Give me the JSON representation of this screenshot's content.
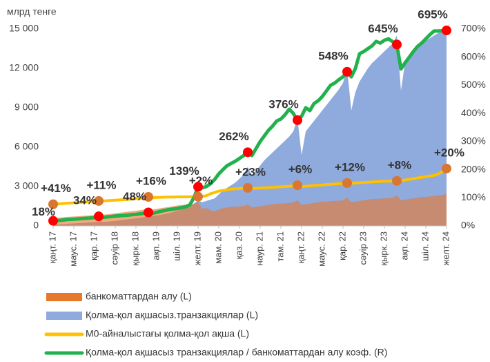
{
  "chart_data": {
    "type": "area",
    "y_label": "млрд тенге",
    "categories": [
      "қаңт. 17",
      null,
      null,
      null,
      null,
      "мауc. 17",
      null,
      null,
      null,
      null,
      "қар. 17",
      null,
      null,
      null,
      null,
      "сәуір 18",
      null,
      null,
      null,
      null,
      "қырк. 18",
      null,
      null,
      null,
      null,
      "ақп. 19",
      null,
      null,
      null,
      null,
      "шіл. 19",
      null,
      null,
      null,
      null,
      "желт. 19",
      null,
      null,
      null,
      null,
      "мам. 20",
      null,
      null,
      null,
      null,
      "қаз. 20",
      null,
      null,
      null,
      null,
      "наур. 21",
      null,
      null,
      null,
      null,
      "там. 21",
      null,
      null,
      null,
      null,
      "қаңт. 22",
      null,
      null,
      null,
      null,
      "мауc. 22",
      null,
      null,
      null,
      null,
      "қар. 22",
      null,
      null,
      null,
      null,
      "сәуір 23",
      null,
      null,
      null,
      null,
      "қырк. 23",
      null,
      null,
      null,
      null,
      "ақп. 24",
      null,
      null,
      null,
      null,
      "шіл. 24",
      null,
      null,
      null,
      null,
      "желт. 24"
    ],
    "series": [
      {
        "name": "Қолма-қол ақшасыз.транзакциялар (L)",
        "kind": "area",
        "color": "#8faadc",
        "values": [
          100,
          110,
          130,
          150,
          170,
          190,
          210,
          230,
          250,
          270,
          290,
          350,
          300,
          320,
          350,
          380,
          420,
          460,
          500,
          540,
          580,
          620,
          680,
          800,
          750,
          800,
          850,
          900,
          980,
          1050,
          1150,
          1250,
          1350,
          1500,
          1700,
          1950,
          1800,
          1900,
          2000,
          2100,
          2400,
          2700,
          2900,
          3100,
          3300,
          3600,
          3900,
          4500,
          3800,
          4200,
          4600,
          5000,
          5300,
          5600,
          5900,
          6200,
          6500,
          6800,
          7200,
          8200,
          5400,
          7200,
          7600,
          8000,
          8400,
          8800,
          9200,
          9600,
          10000,
          10400,
          10900,
          12000,
          8800,
          10200,
          11000,
          11500,
          12000,
          12400,
          12700,
          13000,
          13300,
          13600,
          13900,
          14500,
          10300,
          12500,
          13000,
          13300,
          13600,
          13900,
          14100,
          14300,
          14500,
          14700,
          14800,
          14950
        ]
      },
      {
        "name": "банкоматтардан алу (L)",
        "kind": "area",
        "color": "#e8772e",
        "values": [
          600,
          620,
          650,
          680,
          700,
          720,
          740,
          760,
          780,
          800,
          820,
          900,
          850,
          880,
          920,
          960,
          1000,
          1040,
          1080,
          1120,
          1160,
          1200,
          1250,
          1400,
          1250,
          1300,
          1350,
          1400,
          1450,
          1500,
          1550,
          1600,
          1620,
          1650,
          1680,
          1800,
          1300,
          1350,
          1200,
          1100,
          1250,
          1350,
          1400,
          1450,
          1450,
          1500,
          1500,
          1650,
          1400,
          1450,
          1500,
          1550,
          1600,
          1650,
          1700,
          1700,
          1720,
          1750,
          1780,
          1950,
          1600,
          1650,
          1700,
          1750,
          1800,
          1850,
          1850,
          1880,
          1900,
          1920,
          1950,
          2150,
          1800,
          1850,
          1900,
          1950,
          2000,
          2050,
          2050,
          2080,
          2100,
          2120,
          2150,
          2350,
          1950,
          2000,
          2050,
          2100,
          2150,
          2200,
          2200,
          2250,
          2280,
          2300,
          2350,
          2450
        ]
      },
      {
        "name": "M0-айналыстағы қолма-қол ақша (L)",
        "kind": "line",
        "color": "#ffc000",
        "values": [
          1650,
          1680,
          1700,
          1720,
          1740,
          1760,
          1780,
          1800,
          1820,
          1840,
          1860,
          1900,
          1900,
          1920,
          1940,
          1960,
          1980,
          2000,
          2020,
          2050,
          2080,
          2100,
          2150,
          2210,
          2150,
          2170,
          2180,
          2190,
          2200,
          2200,
          2210,
          2210,
          2220,
          2220,
          2220,
          2230,
          2250,
          2300,
          2450,
          2550,
          2650,
          2700,
          2750,
          2800,
          2820,
          2850,
          2870,
          2900,
          2850,
          2870,
          2890,
          2900,
          2920,
          2940,
          2960,
          2980,
          3000,
          3020,
          3050,
          3100,
          3000,
          3020,
          3050,
          3080,
          3100,
          3120,
          3150,
          3170,
          3200,
          3220,
          3240,
          3270,
          3250,
          3270,
          3290,
          3310,
          3330,
          3350,
          3370,
          3390,
          3400,
          3410,
          3420,
          3430,
          3450,
          3500,
          3550,
          3600,
          3650,
          3700,
          3750,
          3800,
          3850,
          3950,
          4150,
          4370
        ],
        "marker_color": "#d9762f",
        "point_labels": [
          {
            "index": 0,
            "text": "+41%"
          },
          {
            "index": 11,
            "text": "+11%"
          },
          {
            "index": 23,
            "text": "+16%"
          },
          {
            "index": 35,
            "text": "+2%"
          },
          {
            "index": 47,
            "text": "+23%"
          },
          {
            "index": 59,
            "text": "+6%"
          },
          {
            "index": 71,
            "text": "+12%"
          },
          {
            "index": 83,
            "text": "+8%"
          },
          {
            "index": 95,
            "text": "+20%"
          }
        ]
      },
      {
        "name": "Қолма-қол ақшасыз транзакциялар / банкоматтардан алу коэф. (R)",
        "kind": "line",
        "axis": "y2",
        "color": "#22b14c",
        "values": [
          18,
          19,
          20,
          22,
          23,
          24,
          25,
          26,
          27,
          28,
          30,
          34,
          30,
          32,
          33,
          35,
          36,
          37,
          38,
          40,
          41,
          43,
          45,
          48,
          45,
          48,
          52,
          55,
          58,
          60,
          62,
          65,
          68,
          75,
          100,
          139,
          135,
          140,
          150,
          165,
          185,
          200,
          214,
          222,
          230,
          240,
          250,
          262,
          250,
          275,
          300,
          320,
          340,
          355,
          373,
          380,
          395,
          415,
          400,
          376,
          390,
          420,
          410,
          435,
          445,
          460,
          480,
          500,
          508,
          520,
          530,
          548,
          530,
          560,
          612,
          620,
          630,
          640,
          656,
          650,
          660,
          665,
          655,
          645,
          558,
          580,
          600,
          620,
          638,
          650,
          665,
          680,
          693,
          693,
          694,
          695
        ],
        "marker_color": "#ff0000",
        "point_labels": [
          {
            "index": 0,
            "text": "18%"
          },
          {
            "index": 11,
            "text": "34%"
          },
          {
            "index": 23,
            "text": "48%"
          },
          {
            "index": 35,
            "text": "139%"
          },
          {
            "index": 47,
            "text": "262%"
          },
          {
            "index": 59,
            "text": "376%"
          },
          {
            "index": 71,
            "text": "548%"
          },
          {
            "index": 83,
            "text": "645%"
          },
          {
            "index": 95,
            "text": "695%"
          }
        ]
      }
    ],
    "ylim": [
      0,
      15000
    ],
    "yticks": [
      0,
      {
        "value": 3000,
        "label": "3 000"
      },
      {
        "value": 6000,
        "label": "6 000"
      },
      {
        "value": 9000,
        "label": "9 000"
      },
      {
        "value": 12000,
        "label": "12 000"
      },
      {
        "value": 15000,
        "label": "15 000"
      }
    ],
    "y2lim": [
      0,
      700
    ],
    "y2ticks": [
      {
        "value": 0,
        "label": "0%"
      },
      {
        "value": 100,
        "label": "100%"
      },
      {
        "value": 200,
        "label": "200%"
      },
      {
        "value": 300,
        "label": "300%"
      },
      {
        "value": 400,
        "label": "400%"
      },
      {
        "value": 500,
        "label": "500%"
      },
      {
        "value": 600,
        "label": "600%"
      },
      {
        "value": 700,
        "label": "700%"
      }
    ],
    "legend": "bottom"
  }
}
